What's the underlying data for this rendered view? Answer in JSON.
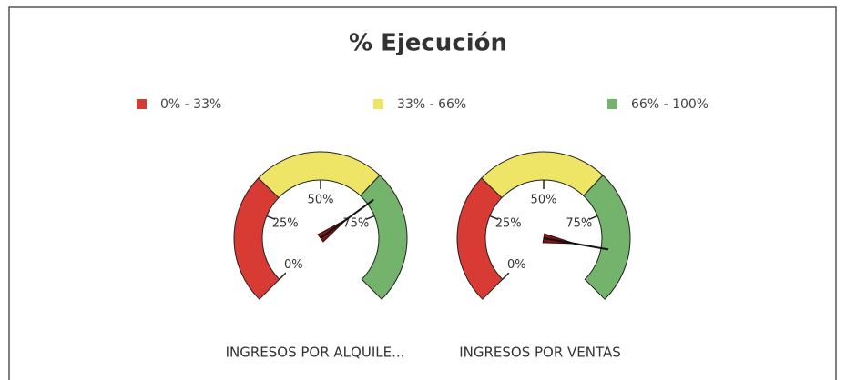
{
  "chart_data": {
    "type": "gauge",
    "title": "% Ejecución",
    "bands": [
      {
        "name": "0% - 33%",
        "color": "#d83a34",
        "range": [
          0,
          33
        ]
      },
      {
        "name": "33% - 66%",
        "color": "#eee465",
        "range": [
          33,
          66
        ]
      },
      {
        "name": "66% - 100%",
        "color": "#73b36b",
        "range": [
          66,
          100
        ]
      }
    ],
    "lim": [
      0,
      100
    ],
    "ticks": [
      {
        "value": 0,
        "label": "0%"
      },
      {
        "value": 25,
        "label": "25%"
      },
      {
        "value": 50,
        "label": "50%"
      },
      {
        "value": 75,
        "label": "75%"
      }
    ],
    "gauges": [
      {
        "label": "INGRESOS POR ALQUILE...",
        "value": 70
      },
      {
        "label": "INGRESOS POR VENTAS",
        "value": 87
      }
    ]
  }
}
